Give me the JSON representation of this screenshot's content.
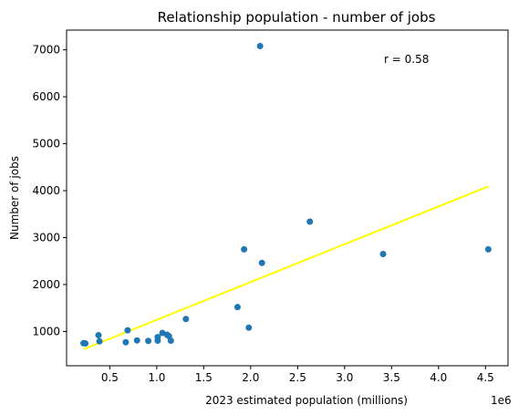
{
  "chart_data": {
    "type": "scatter",
    "title": "Relationship population - number of jobs",
    "xlabel": "2023 estimated population (millions)",
    "ylabel": "Number of jobs",
    "x_offset_text": "1e6",
    "annotation": "r = 0.58",
    "xlim": [
      0.04,
      4.74
    ],
    "ylim": [
      270,
      7420
    ],
    "xticks": [
      0.5,
      1.0,
      1.5,
      2.0,
      2.5,
      3.0,
      3.5,
      4.0,
      4.5
    ],
    "xtick_labels": [
      "0.5",
      "1.0",
      "1.5",
      "2.0",
      "2.5",
      "3.0",
      "3.5",
      "4.0",
      "4.5"
    ],
    "yticks": [
      1000,
      2000,
      3000,
      4000,
      5000,
      6000,
      7000
    ],
    "ytick_labels": [
      "1000",
      "2000",
      "3000",
      "4000",
      "5000",
      "6000",
      "7000"
    ],
    "grid": false,
    "point_color": "#1f77b4",
    "trendline_color": "#ffff00",
    "points": [
      {
        "x": 0.22,
        "y": 750
      },
      {
        "x": 0.24,
        "y": 745
      },
      {
        "x": 0.38,
        "y": 920
      },
      {
        "x": 0.39,
        "y": 790
      },
      {
        "x": 0.67,
        "y": 770
      },
      {
        "x": 0.69,
        "y": 1025
      },
      {
        "x": 0.79,
        "y": 810
      },
      {
        "x": 0.91,
        "y": 800
      },
      {
        "x": 1.01,
        "y": 805
      },
      {
        "x": 1.01,
        "y": 880
      },
      {
        "x": 1.06,
        "y": 970
      },
      {
        "x": 1.11,
        "y": 930
      },
      {
        "x": 1.13,
        "y": 900
      },
      {
        "x": 1.15,
        "y": 805
      },
      {
        "x": 1.31,
        "y": 1265
      },
      {
        "x": 1.86,
        "y": 1520
      },
      {
        "x": 1.93,
        "y": 2750
      },
      {
        "x": 1.98,
        "y": 1080
      },
      {
        "x": 2.1,
        "y": 7080
      },
      {
        "x": 2.12,
        "y": 2460
      },
      {
        "x": 2.63,
        "y": 3340
      },
      {
        "x": 3.41,
        "y": 2650
      },
      {
        "x": 4.53,
        "y": 2750
      }
    ],
    "trendline": {
      "x": [
        0.22,
        4.53
      ],
      "y": [
        620,
        4090
      ]
    }
  }
}
